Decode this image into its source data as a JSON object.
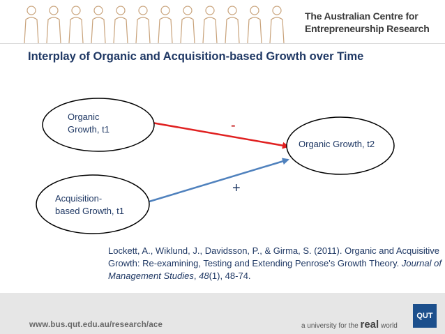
{
  "header": {
    "org_line1": "The Australian Centre for",
    "org_line2": "Entrepreneurship Research"
  },
  "slide": {
    "title": "Interplay of Organic and Acquisition-based Growth over Time"
  },
  "diagram": {
    "nodes": {
      "organic_t1_line1": "Organic",
      "organic_t1_line2": "Growth, t1",
      "acq_t1_line1": "Acquisition-",
      "acq_t1_line2": "based Growth, t1",
      "organic_t2": "Organic Growth, t2"
    },
    "edges": {
      "organic_sign": "-",
      "acq_sign": "+"
    },
    "colors": {
      "negative_edge": "#e02020",
      "positive_edge": "#4f81bd",
      "node_stroke": "#000000"
    }
  },
  "citation": {
    "authors": "Lockett, A., Wiklund, J., Davidsson, P., & Girma, S. (2011). Organic and Acquisitive Growth: Re-examining, Testing and Extending Penrose's Growth Theory. ",
    "journal": "Journal of Management Studies",
    "sep": ", ",
    "volume": "48",
    "issue_pages": "(1), 48-74."
  },
  "footer": {
    "url": "www.bus.qut.edu.au/research/ace",
    "tagline_prefix": "a university for the ",
    "tagline_real": "real",
    "tagline_suffix": " world",
    "logo": "QUT"
  }
}
